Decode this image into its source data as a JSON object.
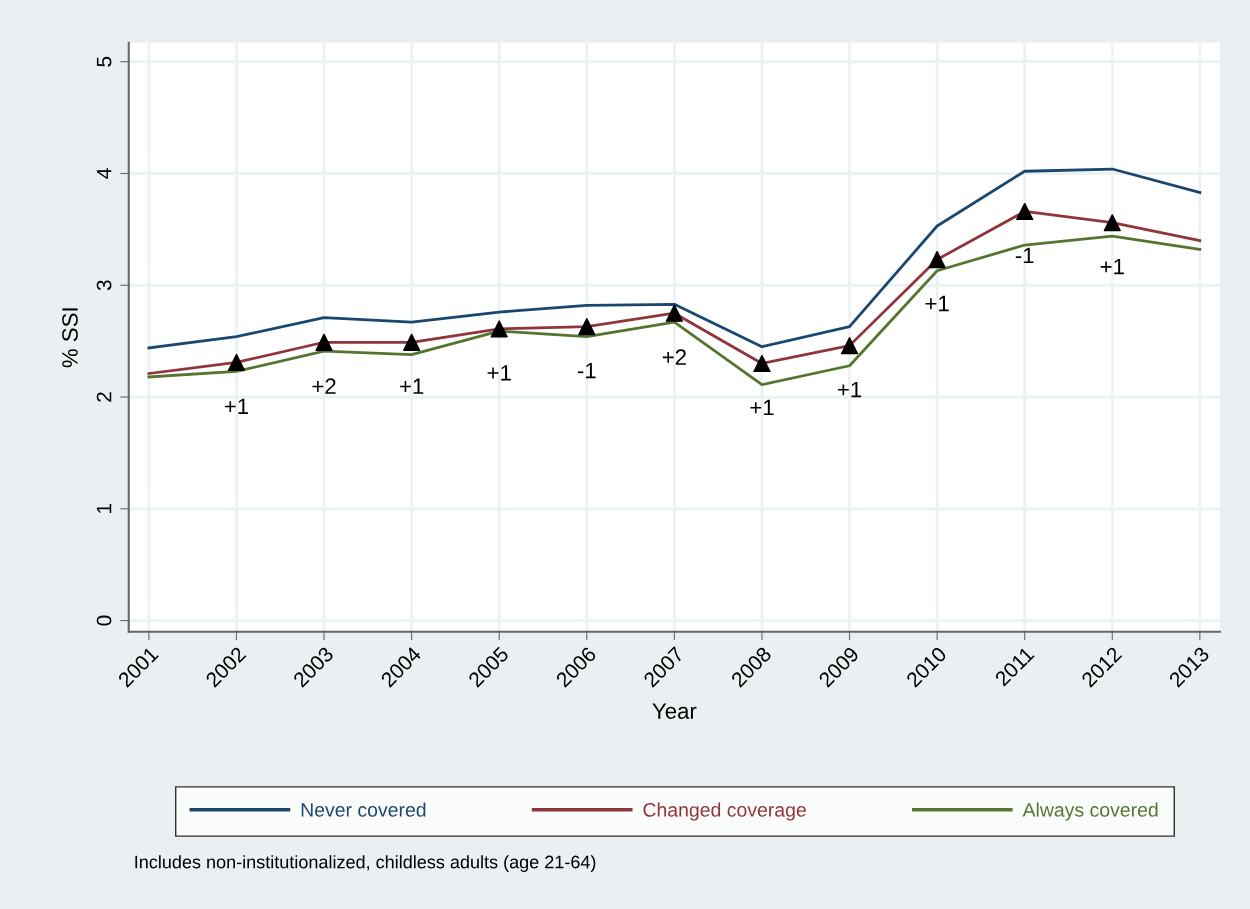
{
  "chart_data": {
    "type": "line",
    "xlabel": "Year",
    "ylabel": "% SSI",
    "x": [
      2001,
      2002,
      2003,
      2004,
      2005,
      2006,
      2007,
      2008,
      2009,
      2010,
      2011,
      2012,
      2013
    ],
    "series": [
      {
        "name": "Never covered",
        "color": "#1a476f",
        "values": [
          2.44,
          2.54,
          2.71,
          2.67,
          2.76,
          2.82,
          2.83,
          2.45,
          2.63,
          3.53,
          4.02,
          4.04,
          3.83
        ]
      },
      {
        "name": "Changed coverage",
        "color": "#90353b",
        "values": [
          2.21,
          2.31,
          2.49,
          2.49,
          2.61,
          2.63,
          2.75,
          2.3,
          2.46,
          3.23,
          3.66,
          3.56,
          3.4
        ]
      },
      {
        "name": "Always covered",
        "color": "#55752f",
        "values": [
          2.18,
          2.23,
          2.41,
          2.38,
          2.59,
          2.54,
          2.67,
          2.11,
          2.28,
          3.13,
          3.36,
          3.44,
          3.32
        ]
      },
      {
        "type": "scatter",
        "marker": "triangle",
        "color": "#000000",
        "x": [
          2002,
          2003,
          2004,
          2005,
          2006,
          2007,
          2008,
          2009,
          2010,
          2011,
          2012
        ],
        "values": [
          2.31,
          2.49,
          2.49,
          2.61,
          2.63,
          2.75,
          2.3,
          2.46,
          3.23,
          3.66,
          3.56
        ]
      }
    ],
    "annotations": [
      {
        "text": "+1",
        "x": 2002,
        "y": 2.31
      },
      {
        "text": "+2",
        "x": 2003,
        "y": 2.49
      },
      {
        "text": "+1",
        "x": 2004,
        "y": 2.49
      },
      {
        "text": "+1",
        "x": 2005,
        "y": 2.61
      },
      {
        "text": "-1",
        "x": 2006,
        "y": 2.63
      },
      {
        "text": "+2",
        "x": 2007,
        "y": 2.75
      },
      {
        "text": "+1",
        "x": 2008,
        "y": 2.3
      },
      {
        "text": "+1",
        "x": 2009,
        "y": 2.46
      },
      {
        "text": "+1",
        "x": 2010,
        "y": 3.23
      },
      {
        "text": "-1",
        "x": 2011,
        "y": 3.66
      },
      {
        "text": "+1",
        "x": 2012,
        "y": 3.56
      },
      "Includes non-institutionalized, childless adults (age 21-64)"
    ],
    "xlim": [
      2000.77,
      2013.23
    ],
    "ylim": [
      -0.1,
      5.17
    ],
    "xticks": [
      2001,
      2002,
      2003,
      2004,
      2005,
      2006,
      2007,
      2008,
      2009,
      2010,
      2011,
      2012,
      2013
    ],
    "yticks": [
      0,
      1,
      2,
      3,
      4,
      5
    ],
    "grid": true,
    "legend": "bottom"
  }
}
